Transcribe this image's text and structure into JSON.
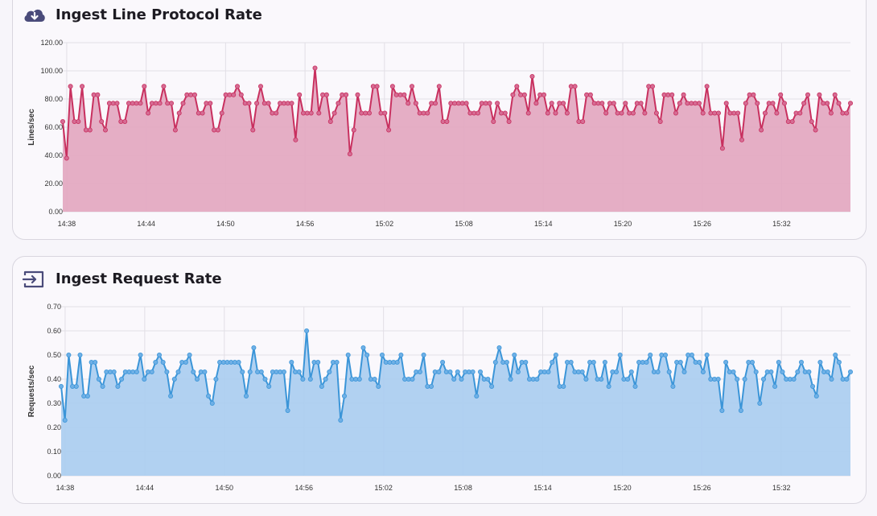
{
  "charts": [
    {
      "title": "Ingest Line Protocol Rate",
      "icon": "cloud-download-icon",
      "colors": {
        "line": "#c8305f",
        "fill": "#e3a7c0",
        "marker": "#d66c94",
        "icon": "#4a4b7a"
      }
    },
    {
      "title": "Ingest Request Rate",
      "icon": "input-arrow-icon",
      "colors": {
        "line": "#3b95d8",
        "fill": "#aacdf0",
        "marker": "#6fb0e6",
        "icon": "#4a4b7a"
      }
    }
  ],
  "chart_data": [
    {
      "type": "area",
      "title": "Ingest Line Protocol Rate",
      "xlabel": "",
      "ylabel": "Lines/sec",
      "ylim": [
        0,
        120
      ],
      "yticks": [
        "0.00",
        "20.00",
        "40.00",
        "60.00",
        "80.00",
        "100.00",
        "120.00"
      ],
      "xticks": [
        "14:38",
        "14:44",
        "14:50",
        "14:56",
        "15:02",
        "15:08",
        "15:14",
        "15:20",
        "15:26",
        "15:32"
      ],
      "x_range_minutes": [
        0,
        59.5
      ],
      "values": [
        64,
        38,
        89,
        64,
        64,
        89,
        58,
        58,
        83,
        83,
        64,
        58,
        77,
        77,
        77,
        64,
        64,
        77,
        77,
        77,
        77,
        89,
        70,
        77,
        77,
        77,
        89,
        77,
        77,
        58,
        70,
        77,
        83,
        83,
        83,
        70,
        70,
        77,
        77,
        58,
        58,
        70,
        83,
        83,
        83,
        89,
        83,
        77,
        77,
        58,
        77,
        89,
        77,
        77,
        70,
        70,
        77,
        77,
        77,
        77,
        51,
        83,
        70,
        70,
        70,
        102,
        70,
        83,
        83,
        64,
        70,
        77,
        83,
        83,
        41,
        58,
        83,
        70,
        70,
        70,
        89,
        89,
        70,
        70,
        58,
        89,
        83,
        83,
        83,
        77,
        89,
        77,
        70,
        70,
        70,
        77,
        77,
        89,
        64,
        64,
        77,
        77,
        77,
        77,
        77,
        70,
        70,
        70,
        77,
        77,
        77,
        64,
        77,
        70,
        70,
        64,
        83,
        89,
        83,
        83,
        70,
        96,
        77,
        83,
        83,
        70,
        77,
        70,
        77,
        77,
        70,
        89,
        89,
        64,
        64,
        83,
        83,
        77,
        77,
        77,
        70,
        77,
        77,
        70,
        70,
        77,
        70,
        70,
        77,
        77,
        70,
        89,
        89,
        70,
        64,
        83,
        83,
        83,
        70,
        77,
        83,
        77,
        77,
        77,
        77,
        70,
        89,
        70,
        70,
        70,
        45,
        77,
        70,
        70,
        70,
        51,
        77,
        83,
        83,
        77,
        58,
        70,
        77,
        77,
        70,
        83,
        77,
        64,
        64,
        70,
        70,
        77,
        83,
        64,
        58,
        83,
        77,
        77,
        70,
        83,
        77,
        70,
        70,
        77
      ]
    },
    {
      "type": "area",
      "title": "Ingest Request Rate",
      "xlabel": "",
      "ylabel": "Requests/sec",
      "ylim": [
        0,
        0.7
      ],
      "yticks": [
        "0.00",
        "0.10",
        "0.20",
        "0.30",
        "0.40",
        "0.50",
        "0.60",
        "0.70"
      ],
      "xticks": [
        "14:38",
        "14:44",
        "14:50",
        "14:56",
        "15:02",
        "15:08",
        "15:14",
        "15:20",
        "15:26",
        "15:32"
      ],
      "x_range_minutes": [
        0,
        59.5
      ],
      "values": [
        0.37,
        0.23,
        0.5,
        0.37,
        0.37,
        0.5,
        0.33,
        0.33,
        0.47,
        0.47,
        0.4,
        0.37,
        0.43,
        0.43,
        0.43,
        0.37,
        0.4,
        0.43,
        0.43,
        0.43,
        0.43,
        0.5,
        0.4,
        0.43,
        0.43,
        0.47,
        0.5,
        0.47,
        0.43,
        0.33,
        0.4,
        0.43,
        0.47,
        0.47,
        0.5,
        0.43,
        0.4,
        0.43,
        0.43,
        0.33,
        0.3,
        0.4,
        0.47,
        0.47,
        0.47,
        0.47,
        0.47,
        0.47,
        0.43,
        0.33,
        0.43,
        0.53,
        0.43,
        0.43,
        0.4,
        0.37,
        0.43,
        0.43,
        0.43,
        0.43,
        0.27,
        0.47,
        0.43,
        0.43,
        0.4,
        0.6,
        0.4,
        0.47,
        0.47,
        0.37,
        0.4,
        0.43,
        0.47,
        0.47,
        0.23,
        0.33,
        0.5,
        0.4,
        0.4,
        0.4,
        0.53,
        0.5,
        0.4,
        0.4,
        0.37,
        0.5,
        0.47,
        0.47,
        0.47,
        0.47,
        0.5,
        0.4,
        0.4,
        0.4,
        0.43,
        0.43,
        0.5,
        0.37,
        0.37,
        0.43,
        0.43,
        0.47,
        0.43,
        0.43,
        0.4,
        0.43,
        0.4,
        0.43,
        0.43,
        0.43,
        0.33,
        0.43,
        0.4,
        0.4,
        0.37,
        0.47,
        0.53,
        0.47,
        0.47,
        0.4,
        0.5,
        0.43,
        0.47,
        0.47,
        0.4,
        0.4,
        0.4,
        0.43,
        0.43,
        0.43,
        0.47,
        0.5,
        0.37,
        0.37,
        0.47,
        0.47,
        0.43,
        0.43,
        0.43,
        0.4,
        0.47,
        0.47,
        0.4,
        0.4,
        0.47,
        0.37,
        0.43,
        0.43,
        0.5,
        0.4,
        0.4,
        0.43,
        0.37,
        0.47,
        0.47,
        0.47,
        0.5,
        0.43,
        0.43,
        0.5,
        0.5,
        0.43,
        0.37,
        0.47,
        0.47,
        0.43,
        0.5,
        0.5,
        0.47,
        0.47,
        0.43,
        0.5,
        0.4,
        0.4,
        0.4,
        0.27,
        0.47,
        0.43,
        0.43,
        0.4,
        0.27,
        0.4,
        0.47,
        0.47,
        0.43,
        0.3,
        0.4,
        0.43,
        0.43,
        0.37,
        0.47,
        0.43,
        0.4,
        0.4,
        0.4,
        0.43,
        0.47,
        0.43,
        0.43,
        0.37,
        0.33,
        0.47,
        0.43,
        0.43,
        0.4,
        0.5,
        0.47,
        0.4,
        0.4,
        0.43
      ]
    }
  ]
}
